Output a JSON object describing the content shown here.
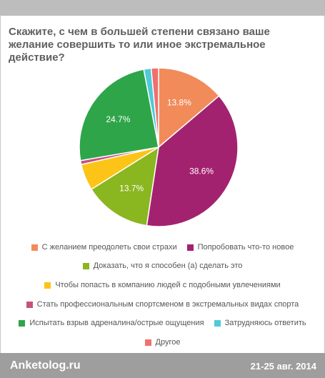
{
  "title": "Скажите, с чем в большей степени связано ваше желание совершить то или иное экстремальное действие?",
  "footer": {
    "brand": "Anketolog.ru",
    "date": "21-25 авг. 2014"
  },
  "chart_data": {
    "type": "pie",
    "title": "Скажите, с чем в большей степени связано ваше желание совершить то или иное экстремальное действие?",
    "legend_position": "bottom",
    "series": [
      {
        "name": "С желанием преодолеть свои страхи",
        "value": 13.8,
        "label": "13.8%",
        "color": "#f28b5a"
      },
      {
        "name": "Попробовать что-то новое",
        "value": 38.6,
        "label": "38.6%",
        "color": "#a3226f"
      },
      {
        "name": "Доказать, что я способен (а) сделать это",
        "value": 13.7,
        "label": "13.7%",
        "color": "#8ab620"
      },
      {
        "name": "Чтобы попасть в компанию людей с подобными увлечениями",
        "value": 5.4,
        "label": "",
        "color": "#fcc417"
      },
      {
        "name": "Стать профессиональным спортсменом в экстремальных видах спорта",
        "value": 0.8,
        "label": "",
        "color": "#c9507e"
      },
      {
        "name": "Испытать взрыв адреналина/острые ощущения",
        "value": 24.7,
        "label": "24.7%",
        "color": "#2fa54a"
      },
      {
        "name": "Затрудняюсь ответить",
        "value": 1.5,
        "label": "",
        "color": "#4fcad8"
      },
      {
        "name": "Другое",
        "value": 1.5,
        "label": "",
        "color": "#f0706f"
      }
    ]
  }
}
